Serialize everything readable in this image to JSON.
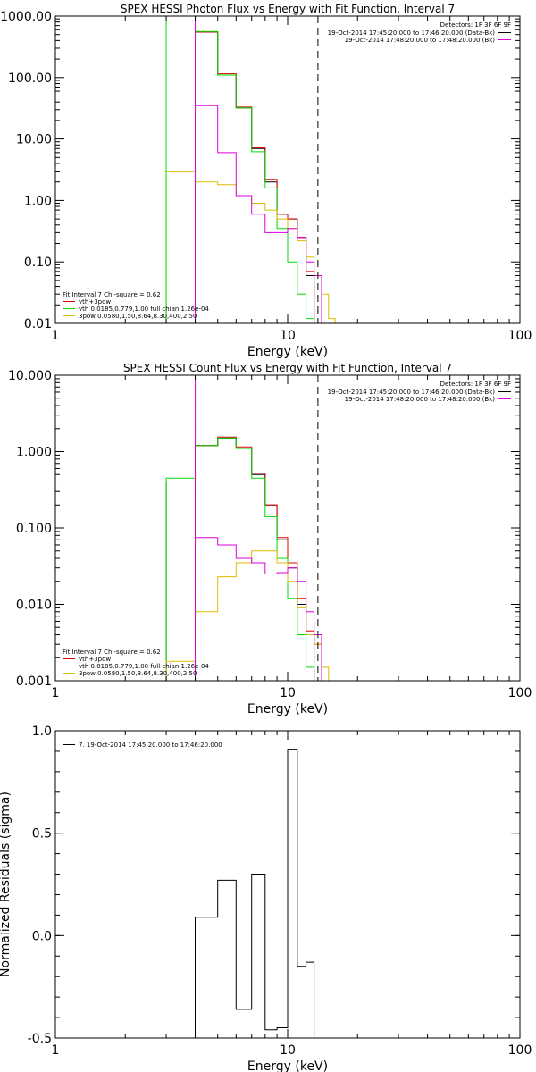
{
  "chart_data": [
    {
      "type": "line",
      "title": "SPEX HESSI Photon Flux vs Energy with Fit Function, Interval 7",
      "xlabel": "Energy (keV)",
      "ylabel": "",
      "xscale": "log",
      "yscale": "log",
      "xlim": [
        1,
        100
      ],
      "ylim": [
        0.01,
        1000
      ],
      "xticks": [
        {
          "v": 1,
          "label": "1"
        },
        {
          "v": 10,
          "label": "10"
        },
        {
          "v": 100,
          "label": "100"
        }
      ],
      "yticks": [
        {
          "v": 0.01,
          "label": "0.01"
        },
        {
          "v": 0.1,
          "label": "0.10"
        },
        {
          "v": 1,
          "label": "1.00"
        },
        {
          "v": 10,
          "label": "10.00"
        },
        {
          "v": 100,
          "label": "100.00"
        },
        {
          "v": 1000,
          "label": "1000.00"
        }
      ],
      "bin_edges": [
        3.0,
        4.0,
        5.0,
        6.0,
        7.0,
        8.0,
        9.0,
        10.0,
        11.0,
        12.0,
        13.0,
        14.0,
        15.0,
        16.0,
        17.0
      ],
      "vlines": [
        {
          "x": 3.0,
          "color": "#00dd00",
          "style": "solid"
        },
        {
          "x": 4.0,
          "color": "#00dd00",
          "style": "dotted"
        },
        {
          "x": 4.0,
          "color": "#dd00dd",
          "style": "solid"
        },
        {
          "x": 13.5,
          "color": "#000000",
          "style": "dashed"
        }
      ],
      "series": [
        {
          "name": "data",
          "color": "#000000",
          "values": [
            null,
            550,
            110,
            32,
            7,
            2.0,
            0.6,
            0.5,
            0.25,
            0.06,
            null,
            null,
            null,
            null
          ]
        },
        {
          "name": "vth+3pow",
          "color": "#dd0000",
          "values": [
            null,
            550,
            115,
            33,
            7.2,
            2.2,
            0.6,
            0.5,
            0.25,
            0.07,
            null,
            null,
            null,
            null
          ]
        },
        {
          "name": "vth 0.0185,0.779,1.00  full chian 1.26e-04",
          "color": "#00dd00",
          "values": [
            null,
            560,
            110,
            32,
            6.2,
            1.6,
            0.35,
            0.1,
            0.03,
            0.012,
            null,
            null,
            null,
            null
          ]
        },
        {
          "name": "3pow 0.0580,1.50,8.64,8.30,400,2.50",
          "color": "#ddbb00",
          "values": [
            3.0,
            2.0,
            1.8,
            1.2,
            0.9,
            0.7,
            0.5,
            0.35,
            0.22,
            0.12,
            0.06,
            0.03,
            0.012,
            null
          ]
        },
        {
          "name": "Bk",
          "color": "#dd00dd",
          "values": [
            null,
            35,
            6,
            1.2,
            0.6,
            0.3,
            0.3,
            0.35,
            0.25,
            0.1,
            0.06,
            null,
            null,
            null
          ]
        }
      ],
      "legend_topright": {
        "header": "Detectors: 1F 3F 6F 9F",
        "entries": [
          {
            "text": "19-Oct-2014 17:45:20.000 to 17:46:20.000 (Data-Bk)",
            "color": "#000000"
          },
          {
            "text": "19-Oct-2014 17:48:20.000 to 17:48:20.000 (Bk)",
            "color": "#dd00dd"
          }
        ]
      },
      "legend_bottomleft": {
        "header": "Fit Interval  7    Chi-square = 0.62",
        "entries": [
          {
            "text": "vth+3pow",
            "color": "#dd0000"
          },
          {
            "text": "vth 0.0185,0.779,1.00  full chian 1.26e-04",
            "color": "#00dd00"
          },
          {
            "text": "3pow 0.0580,1.50,8.64,8.30,400,2.50",
            "color": "#ddbb00"
          }
        ]
      }
    },
    {
      "type": "line",
      "title": "SPEX HESSI Count Flux vs Energy with Fit Function, Interval 7",
      "xlabel": "Energy (keV)",
      "ylabel": "",
      "xscale": "log",
      "yscale": "log",
      "xlim": [
        1,
        100
      ],
      "ylim": [
        0.001,
        10
      ],
      "xticks": [
        {
          "v": 1,
          "label": "1"
        },
        {
          "v": 10,
          "label": "10"
        },
        {
          "v": 100,
          "label": "100"
        }
      ],
      "yticks": [
        {
          "v": 0.001,
          "label": "0.001"
        },
        {
          "v": 0.01,
          "label": "0.010"
        },
        {
          "v": 0.1,
          "label": "0.100"
        },
        {
          "v": 1,
          "label": "1.000"
        },
        {
          "v": 10,
          "label": "10.000"
        }
      ],
      "bin_edges": [
        3.0,
        4.0,
        5.0,
        6.0,
        7.0,
        8.0,
        9.0,
        10.0,
        11.0,
        12.0,
        13.0,
        14.0,
        15.0,
        16.0,
        17.0
      ],
      "vlines": [
        {
          "x": 4.0,
          "color": "#000000",
          "style": "dotted"
        },
        {
          "x": 4.0,
          "color": "#dd00dd",
          "style": "solid"
        },
        {
          "x": 13.5,
          "color": "#000000",
          "style": "dashed"
        }
      ],
      "series": [
        {
          "name": "data",
          "color": "#000000",
          "values": [
            0.4,
            1.2,
            1.5,
            1.1,
            0.5,
            0.2,
            0.07,
            0.03,
            0.01,
            0.004,
            null,
            null,
            null,
            null
          ]
        },
        {
          "name": "vth+3pow",
          "color": "#dd0000",
          "values": [
            null,
            1.2,
            1.55,
            1.15,
            0.52,
            0.2,
            0.075,
            0.035,
            0.012,
            0.0045,
            0.003,
            null,
            null,
            null
          ]
        },
        {
          "name": "vth 0.0185,0.779,1.00  full chian 1.26e-04",
          "color": "#00dd00",
          "values": [
            0.45,
            1.2,
            1.5,
            1.1,
            0.45,
            0.14,
            0.04,
            0.012,
            0.004,
            0.0015,
            null,
            null,
            null,
            null
          ]
        },
        {
          "name": "3pow 0.0580,1.50,8.64,8.30,400,2.50",
          "color": "#ddbb00",
          "values": [
            0.0018,
            0.008,
            0.023,
            0.035,
            0.05,
            0.05,
            0.035,
            0.02,
            0.009,
            0.004,
            0.003,
            0.0015,
            null,
            null
          ]
        },
        {
          "name": "Bk",
          "color": "#dd00dd",
          "values": [
            null,
            0.075,
            0.06,
            0.04,
            0.035,
            0.025,
            0.026,
            0.03,
            0.02,
            0.008,
            0.004,
            null,
            null,
            null
          ]
        }
      ],
      "legend_topright": {
        "header": "Detectors: 1F 3F 6F 9F",
        "entries": [
          {
            "text": "19-Oct-2014 17:45:20.000 to 17:46:20.000 (Data-Bk)",
            "color": "#000000"
          },
          {
            "text": "19-Oct-2014 17:48:20.000 to 17:48:20.000 (Bk)",
            "color": "#dd00dd"
          }
        ]
      },
      "legend_bottomleft": {
        "header": "Fit Interval  7    Chi-square = 0.62",
        "entries": [
          {
            "text": "vth+3pow",
            "color": "#dd0000"
          },
          {
            "text": "vth 0.0185,0.779,1.00  full chian 1.26e-04",
            "color": "#00dd00"
          },
          {
            "text": "3pow 0.0580,1.50,8.64,8.30,400,2.50",
            "color": "#ddbb00"
          }
        ]
      }
    },
    {
      "type": "line",
      "title": "",
      "xlabel": "Energy (keV)",
      "ylabel": "Normalized Residuals (sigma)",
      "xscale": "log",
      "yscale": "linear",
      "xlim": [
        1,
        100
      ],
      "ylim": [
        -0.5,
        1.0
      ],
      "xticks": [
        {
          "v": 1,
          "label": "1"
        },
        {
          "v": 10,
          "label": "10"
        },
        {
          "v": 100,
          "label": "100"
        }
      ],
      "yticks": [
        {
          "v": -0.5,
          "label": "-0.5"
        },
        {
          "v": 0,
          "label": "0.0"
        },
        {
          "v": 0.5,
          "label": "0.5"
        },
        {
          "v": 1.0,
          "label": "1.0"
        }
      ],
      "bin_edges": [
        4.0,
        5.0,
        6.0,
        7.0,
        8.0,
        9.0,
        10.0,
        11.0,
        12.0,
        13.0
      ],
      "vlines": [],
      "series": [
        {
          "name": "7. 19-Oct-2014 17:45:20.000 to 17:46:20.000",
          "color": "#000000",
          "values": [
            0.09,
            0.27,
            -0.36,
            0.3,
            -0.46,
            -0.45,
            0.91,
            -0.15,
            -0.13
          ]
        }
      ],
      "legend_topleft": {
        "entries": [
          {
            "text": "7. 19-Oct-2014 17:45:20.000 to 17:46:20.000",
            "color": "#000000"
          }
        ]
      }
    }
  ]
}
